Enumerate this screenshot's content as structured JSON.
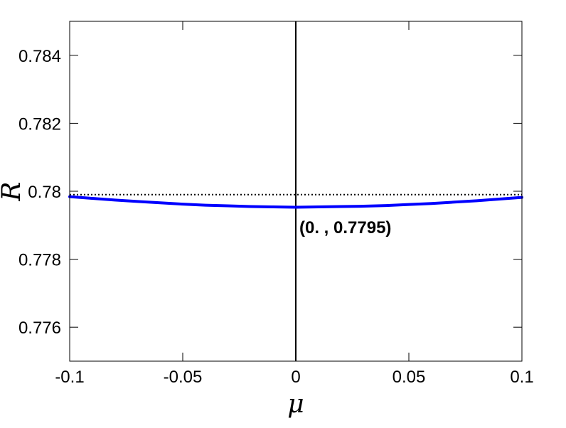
{
  "chart_data": {
    "type": "line",
    "xlabel": "μ",
    "ylabel": "R",
    "xlim": [
      -0.1,
      0.1
    ],
    "ylim": [
      0.775,
      0.785
    ],
    "x_ticks": [
      -0.1,
      -0.05,
      0,
      0.05,
      0.1
    ],
    "x_tick_labels": [
      "-0.1",
      "-0.05",
      "0",
      "0.05",
      "0.1"
    ],
    "y_ticks": [
      0.776,
      0.778,
      0.78,
      0.782,
      0.784
    ],
    "y_tick_labels": [
      "0.776",
      "0.778",
      "0.78",
      "0.782",
      "0.784"
    ],
    "grid": false,
    "series": [
      {
        "color": "#0000ff",
        "style": "solid",
        "x": [
          -0.1,
          -0.09,
          -0.08,
          -0.07,
          -0.06,
          -0.05,
          -0.04,
          -0.03,
          -0.02,
          -0.01,
          0,
          0.01,
          0.02,
          0.03,
          0.04,
          0.05,
          0.06,
          0.07,
          0.08,
          0.09,
          0.1
        ],
        "y": [
          0.77984,
          0.77979,
          0.77974,
          0.7797,
          0.77966,
          0.77962,
          0.77959,
          0.77957,
          0.77955,
          0.77954,
          0.77953,
          0.77954,
          0.77955,
          0.77956,
          0.77958,
          0.77961,
          0.77964,
          0.77968,
          0.77972,
          0.77977,
          0.77982
        ]
      }
    ],
    "reference_lines": [
      {
        "orientation": "horizontal",
        "value": 0.7799,
        "color": "#000000",
        "style": "dotted"
      },
      {
        "orientation": "vertical",
        "value": 0,
        "color": "#000000",
        "style": "solid"
      }
    ],
    "annotations": [
      {
        "text": "(0. , 0.7795)",
        "x": 0,
        "y": 0.7795
      }
    ]
  }
}
